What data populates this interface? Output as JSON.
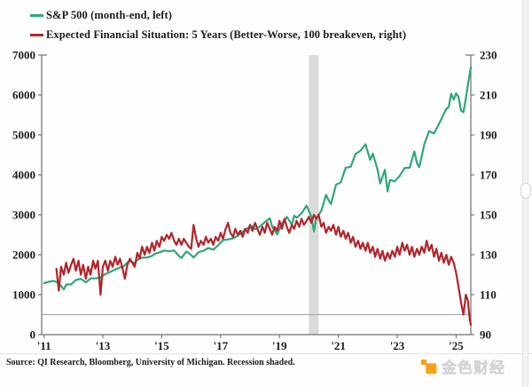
{
  "legend": {
    "items": [
      {
        "id": "sp500",
        "label": "S&P 500 (month-end, left)",
        "color": "#2ea777"
      },
      {
        "id": "efs",
        "label": "Expected Financial Situation: 5 Years (Better-Worse, 100 breakeven, right)",
        "color": "#b0252b"
      }
    ]
  },
  "source_note": "Source: QI Research, Bloomberg, University of Michigan. Recession shaded.",
  "watermark": {
    "text": "金色财经",
    "icon_color": "#f5a21b"
  },
  "chart_data": {
    "type": "line",
    "title": "",
    "xlim": [
      2010.92,
      2025.5
    ],
    "x_ticks": {
      "positions": [
        2011,
        2013,
        2015,
        2017,
        2019,
        2021,
        2023,
        2025
      ],
      "labels": [
        "'11",
        "'13",
        "'15",
        "'17",
        "'19",
        "'21",
        "'23",
        "'25"
      ]
    },
    "left_axis": {
      "name": "S&P 500 (month-end)",
      "range": [
        0,
        7000
      ],
      "ticks": [
        0,
        1000,
        2000,
        3000,
        4000,
        5000,
        6000,
        7000
      ]
    },
    "right_axis": {
      "name": "Expected Financial Situation: 5 Years",
      "range": [
        90,
        230
      ],
      "ticks": [
        90,
        110,
        130,
        150,
        170,
        190,
        210,
        230
      ]
    },
    "grid": false,
    "legend_position": "top-left",
    "breakeven": {
      "axis": "right",
      "value": 100,
      "color": "#a3a3a3"
    },
    "recession_band": {
      "from": 2020.0,
      "to": 2020.33,
      "color": "#dadada"
    },
    "series": [
      {
        "name": "S&P 500 (month-end, left)",
        "axis": "left",
        "color": "#2ea777",
        "points": [
          [
            2011.0,
            1286
          ],
          [
            2011.17,
            1327
          ],
          [
            2011.33,
            1345
          ],
          [
            2011.5,
            1292
          ],
          [
            2011.58,
            1219
          ],
          [
            2011.67,
            1131
          ],
          [
            2011.75,
            1253
          ],
          [
            2011.92,
            1258
          ],
          [
            2012.08,
            1366
          ],
          [
            2012.25,
            1398
          ],
          [
            2012.42,
            1310
          ],
          [
            2012.58,
            1406
          ],
          [
            2012.75,
            1412
          ],
          [
            2012.92,
            1426
          ],
          [
            2013.08,
            1515
          ],
          [
            2013.25,
            1569
          ],
          [
            2013.42,
            1631
          ],
          [
            2013.58,
            1685
          ],
          [
            2013.67,
            1682
          ],
          [
            2013.83,
            1806
          ],
          [
            2013.92,
            1848
          ],
          [
            2014.08,
            1783
          ],
          [
            2014.17,
            1872
          ],
          [
            2014.33,
            1924
          ],
          [
            2014.5,
            1931
          ],
          [
            2014.67,
            1972
          ],
          [
            2014.75,
            2018
          ],
          [
            2014.92,
            2059
          ],
          [
            2015.08,
            2105
          ],
          [
            2015.25,
            2086
          ],
          [
            2015.42,
            2107
          ],
          [
            2015.58,
            1972
          ],
          [
            2015.67,
            1920
          ],
          [
            2015.83,
            2080
          ],
          [
            2015.92,
            2044
          ],
          [
            2016.08,
            1932
          ],
          [
            2016.25,
            2065
          ],
          [
            2016.42,
            2099
          ],
          [
            2016.58,
            2171
          ],
          [
            2016.75,
            2126
          ],
          [
            2016.92,
            2239
          ],
          [
            2017.08,
            2364
          ],
          [
            2017.25,
            2384
          ],
          [
            2017.42,
            2412
          ],
          [
            2017.58,
            2472
          ],
          [
            2017.75,
            2575
          ],
          [
            2017.92,
            2674
          ],
          [
            2018.08,
            2714
          ],
          [
            2018.17,
            2641
          ],
          [
            2018.33,
            2705
          ],
          [
            2018.5,
            2816
          ],
          [
            2018.67,
            2914
          ],
          [
            2018.75,
            2712
          ],
          [
            2018.92,
            2507
          ],
          [
            2019.08,
            2784
          ],
          [
            2019.25,
            2946
          ],
          [
            2019.42,
            2752
          ],
          [
            2019.5,
            2980
          ],
          [
            2019.58,
            2926
          ],
          [
            2019.75,
            3038
          ],
          [
            2019.92,
            3231
          ],
          [
            2020.08,
            2954
          ],
          [
            2020.17,
            2585
          ],
          [
            2020.25,
            2912
          ],
          [
            2020.42,
            3100
          ],
          [
            2020.58,
            3500
          ],
          [
            2020.67,
            3363
          ],
          [
            2020.75,
            3270
          ],
          [
            2020.92,
            3756
          ],
          [
            2021.08,
            3811
          ],
          [
            2021.25,
            4181
          ],
          [
            2021.42,
            4204
          ],
          [
            2021.58,
            4523
          ],
          [
            2021.75,
            4605
          ],
          [
            2021.92,
            4766
          ],
          [
            2022.08,
            4374
          ],
          [
            2022.17,
            4530
          ],
          [
            2022.33,
            4132
          ],
          [
            2022.42,
            3785
          ],
          [
            2022.58,
            4130
          ],
          [
            2022.67,
            3585
          ],
          [
            2022.75,
            3872
          ],
          [
            2022.92,
            3840
          ],
          [
            2023.08,
            3970
          ],
          [
            2023.25,
            4169
          ],
          [
            2023.42,
            4180
          ],
          [
            2023.58,
            4589
          ],
          [
            2023.67,
            4288
          ],
          [
            2023.75,
            4194
          ],
          [
            2023.92,
            4770
          ],
          [
            2024.08,
            5096
          ],
          [
            2024.25,
            5036
          ],
          [
            2024.42,
            5277
          ],
          [
            2024.58,
            5522
          ],
          [
            2024.67,
            5648
          ],
          [
            2024.75,
            5705
          ],
          [
            2024.83,
            6032
          ],
          [
            2024.92,
            5882
          ],
          [
            2025.0,
            6041
          ],
          [
            2025.08,
            5955
          ],
          [
            2025.17,
            5612
          ],
          [
            2025.25,
            5569
          ],
          [
            2025.33,
            5912
          ],
          [
            2025.42,
            6339
          ],
          [
            2025.5,
            6688
          ]
        ]
      },
      {
        "name": "Expected Financial Situation: 5 Years (Better-Worse, 100 breakeven, right)",
        "axis": "right",
        "color": "#b0252b",
        "points": [
          [
            2011.42,
            123
          ],
          [
            2011.5,
            112
          ],
          [
            2011.58,
            124
          ],
          [
            2011.67,
            120
          ],
          [
            2011.75,
            126
          ],
          [
            2011.83,
            121
          ],
          [
            2011.92,
            125
          ],
          [
            2012.0,
            128
          ],
          [
            2012.08,
            122
          ],
          [
            2012.17,
            127
          ],
          [
            2012.25,
            120
          ],
          [
            2012.33,
            125
          ],
          [
            2012.42,
            118
          ],
          [
            2012.5,
            124
          ],
          [
            2012.58,
            120
          ],
          [
            2012.67,
            127
          ],
          [
            2012.75,
            123
          ],
          [
            2012.83,
            127
          ],
          [
            2012.92,
            110
          ],
          [
            2013.0,
            124
          ],
          [
            2013.08,
            127
          ],
          [
            2013.17,
            122
          ],
          [
            2013.25,
            127
          ],
          [
            2013.33,
            124
          ],
          [
            2013.42,
            129
          ],
          [
            2013.5,
            125
          ],
          [
            2013.58,
            128
          ],
          [
            2013.67,
            123
          ],
          [
            2013.75,
            118
          ],
          [
            2013.83,
            125
          ],
          [
            2013.92,
            128
          ],
          [
            2014.0,
            126
          ],
          [
            2014.08,
            124
          ],
          [
            2014.17,
            131
          ],
          [
            2014.25,
            128
          ],
          [
            2014.33,
            134
          ],
          [
            2014.42,
            130
          ],
          [
            2014.5,
            134
          ],
          [
            2014.58,
            131
          ],
          [
            2014.67,
            136
          ],
          [
            2014.75,
            132
          ],
          [
            2014.83,
            137
          ],
          [
            2014.92,
            134
          ],
          [
            2015.0,
            139
          ],
          [
            2015.08,
            137
          ],
          [
            2015.17,
            140
          ],
          [
            2015.25,
            138
          ],
          [
            2015.33,
            141
          ],
          [
            2015.42,
            137
          ],
          [
            2015.5,
            135
          ],
          [
            2015.58,
            138
          ],
          [
            2015.67,
            135
          ],
          [
            2015.75,
            138
          ],
          [
            2015.83,
            136
          ],
          [
            2015.92,
            134
          ],
          [
            2016.0,
            133
          ],
          [
            2016.08,
            145
          ],
          [
            2016.17,
            138
          ],
          [
            2016.25,
            134
          ],
          [
            2016.33,
            137
          ],
          [
            2016.42,
            135
          ],
          [
            2016.5,
            139
          ],
          [
            2016.58,
            136
          ],
          [
            2016.67,
            138
          ],
          [
            2016.75,
            135
          ],
          [
            2016.83,
            139
          ],
          [
            2016.92,
            137
          ],
          [
            2017.0,
            141
          ],
          [
            2017.08,
            138
          ],
          [
            2017.17,
            143
          ],
          [
            2017.25,
            146
          ],
          [
            2017.33,
            141
          ],
          [
            2017.42,
            139
          ],
          [
            2017.5,
            143
          ],
          [
            2017.58,
            140
          ],
          [
            2017.67,
            142
          ],
          [
            2017.75,
            139
          ],
          [
            2017.83,
            143
          ],
          [
            2017.92,
            141
          ],
          [
            2018.0,
            145
          ],
          [
            2018.08,
            142
          ],
          [
            2018.17,
            146
          ],
          [
            2018.25,
            143
          ],
          [
            2018.33,
            140
          ],
          [
            2018.42,
            144
          ],
          [
            2018.5,
            141
          ],
          [
            2018.58,
            146
          ],
          [
            2018.67,
            143
          ],
          [
            2018.75,
            140
          ],
          [
            2018.83,
            144
          ],
          [
            2018.92,
            142
          ],
          [
            2019.0,
            147
          ],
          [
            2019.08,
            143
          ],
          [
            2019.17,
            148
          ],
          [
            2019.25,
            144
          ],
          [
            2019.33,
            141
          ],
          [
            2019.42,
            145
          ],
          [
            2019.5,
            143
          ],
          [
            2019.58,
            147
          ],
          [
            2019.67,
            144
          ],
          [
            2019.75,
            148
          ],
          [
            2019.83,
            145
          ],
          [
            2019.92,
            147
          ],
          [
            2020.0,
            149
          ],
          [
            2020.08,
            146
          ],
          [
            2020.17,
            150
          ],
          [
            2020.25,
            148
          ],
          [
            2020.33,
            150
          ],
          [
            2020.42,
            144
          ],
          [
            2020.5,
            146
          ],
          [
            2020.58,
            141
          ],
          [
            2020.67,
            144
          ],
          [
            2020.75,
            142
          ],
          [
            2020.83,
            145
          ],
          [
            2020.92,
            140
          ],
          [
            2021.0,
            144
          ],
          [
            2021.08,
            139
          ],
          [
            2021.17,
            142
          ],
          [
            2021.25,
            138
          ],
          [
            2021.33,
            141
          ],
          [
            2021.42,
            136
          ],
          [
            2021.5,
            139
          ],
          [
            2021.58,
            134
          ],
          [
            2021.67,
            137
          ],
          [
            2021.75,
            133
          ],
          [
            2021.83,
            136
          ],
          [
            2021.92,
            132
          ],
          [
            2022.0,
            136
          ],
          [
            2022.08,
            131
          ],
          [
            2022.17,
            134
          ],
          [
            2022.25,
            129
          ],
          [
            2022.33,
            133
          ],
          [
            2022.42,
            128
          ],
          [
            2022.5,
            132
          ],
          [
            2022.58,
            127
          ],
          [
            2022.67,
            131
          ],
          [
            2022.75,
            128
          ],
          [
            2022.83,
            132
          ],
          [
            2022.92,
            129
          ],
          [
            2023.0,
            134
          ],
          [
            2023.08,
            130
          ],
          [
            2023.17,
            136
          ],
          [
            2023.25,
            132
          ],
          [
            2023.33,
            135
          ],
          [
            2023.42,
            130
          ],
          [
            2023.5,
            134
          ],
          [
            2023.58,
            129
          ],
          [
            2023.67,
            133
          ],
          [
            2023.75,
            130
          ],
          [
            2023.83,
            134
          ],
          [
            2023.92,
            131
          ],
          [
            2024.0,
            137
          ],
          [
            2024.08,
            132
          ],
          [
            2024.17,
            135
          ],
          [
            2024.25,
            129
          ],
          [
            2024.33,
            133
          ],
          [
            2024.42,
            127
          ],
          [
            2024.5,
            131
          ],
          [
            2024.58,
            126
          ],
          [
            2024.67,
            130
          ],
          [
            2024.75,
            125
          ],
          [
            2024.83,
            129
          ],
          [
            2024.92,
            126
          ],
          [
            2025.0,
            121
          ],
          [
            2025.08,
            114
          ],
          [
            2025.17,
            106
          ],
          [
            2025.25,
            100
          ],
          [
            2025.33,
            110
          ],
          [
            2025.4,
            107
          ],
          [
            2025.46,
            98
          ],
          [
            2025.5,
            95
          ]
        ]
      }
    ]
  }
}
